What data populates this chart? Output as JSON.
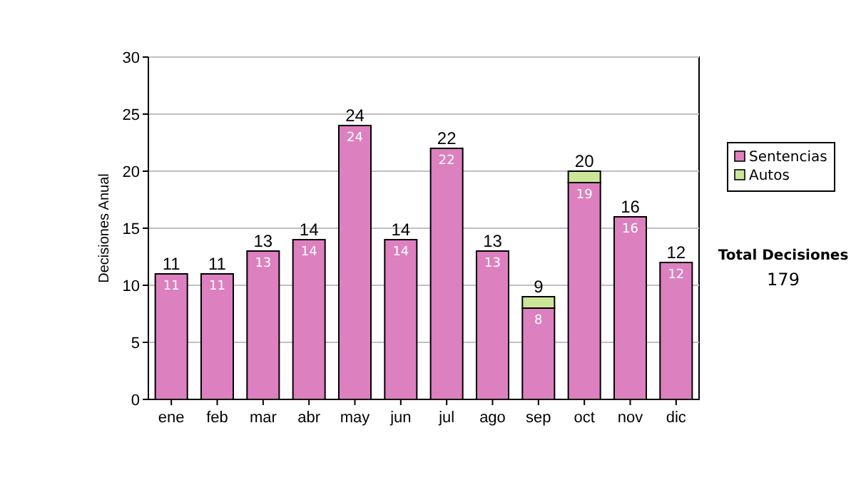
{
  "chart_data": {
    "type": "bar",
    "stacked": true,
    "ylabel": "Decisiones Anual",
    "categories": [
      "ene",
      "feb",
      "mar",
      "abr",
      "may",
      "jun",
      "jul",
      "ago",
      "sep",
      "oct",
      "nov",
      "dic"
    ],
    "series": [
      {
        "name": "Sentencias",
        "color": "#dd80bf",
        "values": [
          11,
          11,
          13,
          14,
          24,
          14,
          22,
          13,
          8,
          19,
          16,
          12
        ],
        "value_labels": [
          "11",
          "11",
          "13",
          "14",
          "24",
          "14",
          "22",
          "13",
          "8",
          "19",
          "16",
          "12"
        ]
      },
      {
        "name": "Autos",
        "color": "#cce699",
        "values": [
          0,
          0,
          0,
          0,
          0,
          0,
          0,
          0,
          1,
          1,
          0,
          0
        ]
      }
    ],
    "totals": [
      "11",
      "11",
      "13",
      "14",
      "24",
      "14",
      "22",
      "13",
      "9",
      "20",
      "16",
      "12"
    ],
    "ylim": [
      0,
      30
    ],
    "yticks": [
      0,
      5,
      10,
      15,
      20,
      25,
      30
    ],
    "grid": "y",
    "legend": "right",
    "annotations": [
      "Total Decisiones",
      "179"
    ]
  }
}
